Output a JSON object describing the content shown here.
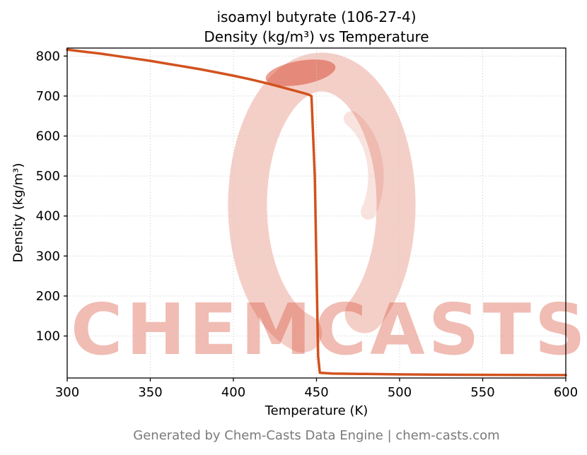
{
  "figure": {
    "footer": "Generated by Chem-Casts Data Engine | chem-casts.com",
    "watermark": "CHEMCASTS",
    "watermark_color": "#d9523a",
    "background_color": "#ffffff"
  },
  "chart_data": {
    "type": "line",
    "title": "isoamyl butyrate (106-27-4)",
    "subtitle": "Density (kg/m³) vs Temperature",
    "xlabel": "Temperature (K)",
    "ylabel": "Density (kg/m³)",
    "xlim": [
      300,
      600
    ],
    "ylim": [
      -5,
      820
    ],
    "xticks": [
      300,
      350,
      400,
      450,
      500,
      550,
      600
    ],
    "yticks": [
      100,
      200,
      300,
      400,
      500,
      600,
      700,
      800
    ],
    "grid": true,
    "grid_style": "dotted",
    "grid_color": "#c9c9c9",
    "legend": false,
    "line_color": "#d2521e",
    "series": [
      {
        "name": "density",
        "x": [
          300,
          310,
          320,
          330,
          340,
          350,
          360,
          370,
          380,
          390,
          400,
          410,
          420,
          430,
          440,
          445,
          447,
          449,
          451,
          452,
          460,
          480,
          500,
          520,
          540,
          560,
          580,
          600
        ],
        "y": [
          816,
          811,
          806,
          800,
          794,
          788,
          781,
          774,
          767,
          759,
          751,
          742,
          732,
          721,
          710,
          704,
          700,
          500,
          50,
          8,
          6,
          5,
          4,
          3.5,
          3,
          2.8,
          2.5,
          2.3
        ]
      }
    ]
  }
}
